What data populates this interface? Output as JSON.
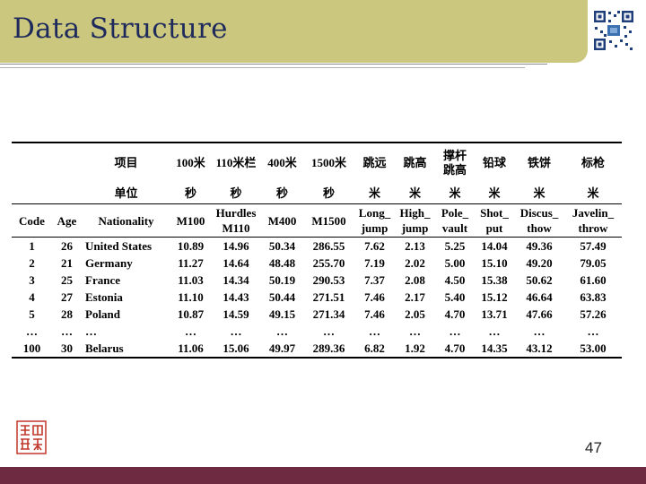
{
  "title": "Data Structure",
  "page_number": "47",
  "colors": {
    "header_band": "#cbc77e",
    "title": "#1f2a5c",
    "footer_band": "#6d2a40",
    "seal": "#c0392b"
  },
  "table": {
    "row_item": [
      "",
      "",
      "项目",
      "100米",
      "110米栏",
      "400米",
      "1500米",
      "跳远",
      "跳高",
      [
        "撑杆",
        "跳高"
      ],
      "铅球",
      "铁饼",
      "标枪"
    ],
    "row_unit": [
      "",
      "",
      "单位",
      "秒",
      "秒",
      "秒",
      "秒",
      "米",
      "米",
      "米",
      "米",
      "米",
      "米"
    ],
    "row_vars": [
      "Code",
      "Age",
      "Nationality",
      "M100",
      [
        "Hurdles",
        "M110"
      ],
      "M400",
      "M1500",
      [
        "Long_",
        "jump"
      ],
      [
        "High_",
        "jump"
      ],
      [
        "Pole_",
        "vault"
      ],
      [
        "Shot_",
        "put"
      ],
      [
        "Discus_",
        "thow"
      ],
      [
        "Javelin_",
        "throw"
      ]
    ],
    "rows": [
      [
        "1",
        "26",
        "United States",
        "10.89",
        "14.96",
        "50.34",
        "286.55",
        "7.62",
        "2.13",
        "5.25",
        "14.04",
        "49.36",
        "57.49"
      ],
      [
        "2",
        "21",
        "Germany",
        "11.27",
        "14.64",
        "48.48",
        "255.70",
        "7.19",
        "2.02",
        "5.00",
        "15.10",
        "49.20",
        "79.05"
      ],
      [
        "3",
        "25",
        "France",
        "11.03",
        "14.34",
        "50.19",
        "290.53",
        "7.37",
        "2.08",
        "4.50",
        "15.38",
        "50.62",
        "61.60"
      ],
      [
        "4",
        "27",
        "Estonia",
        "11.10",
        "14.43",
        "50.44",
        "271.51",
        "7.46",
        "2.17",
        "5.40",
        "15.12",
        "46.64",
        "63.83"
      ],
      [
        "5",
        "28",
        "Poland",
        "10.87",
        "14.59",
        "49.15",
        "271.34",
        "7.46",
        "2.05",
        "4.70",
        "13.71",
        "47.66",
        "57.26"
      ],
      [
        "…",
        "…",
        "…",
        "…",
        "…",
        "…",
        "…",
        "…",
        "…",
        "…",
        "…",
        "…",
        "…"
      ],
      [
        "100",
        "30",
        "Belarus",
        "11.06",
        "15.06",
        "49.97",
        "289.36",
        "6.82",
        "1.92",
        "4.70",
        "14.35",
        "43.12",
        "53.00"
      ]
    ]
  }
}
